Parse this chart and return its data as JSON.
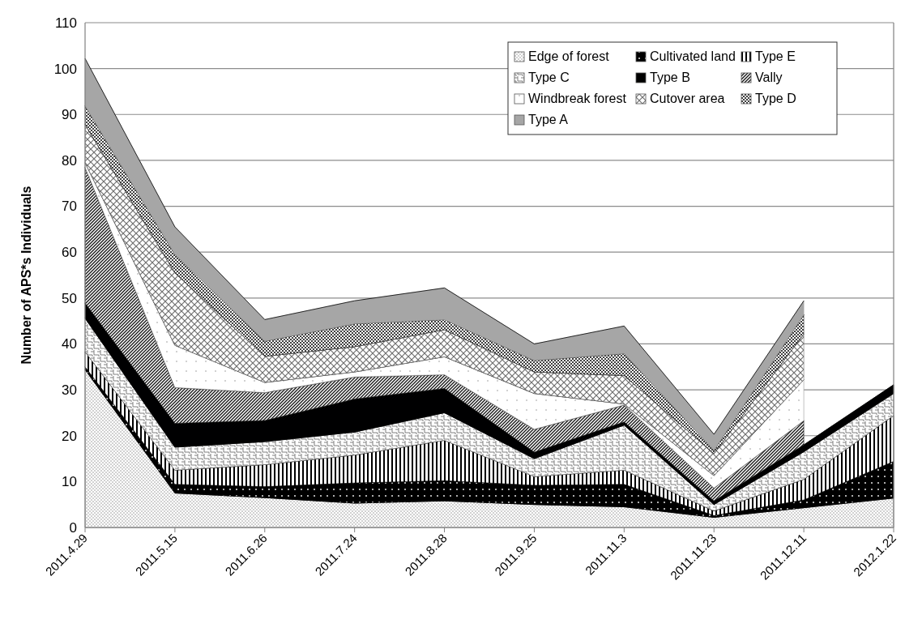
{
  "chart_data": {
    "type": "area",
    "stacked": true,
    "ylabel": "Number of APS*s Individuals",
    "categories": [
      "2011.4.29",
      "2011.5.15",
      "2011.6.26",
      "2011.7.24",
      "2011.8.28",
      "2011.9.25",
      "2011.11.3",
      "2011.11.23",
      "2011.12.11",
      "2012.1.22"
    ],
    "series": [
      {
        "name": "Edge of forest",
        "color": "#808080",
        "values": [
          34.4,
          7.5,
          6.5,
          5.3,
          5.8,
          5.0,
          4.5,
          2.2,
          4.3,
          6.4
        ]
      },
      {
        "name": "Cultivated land",
        "color": "#000000",
        "values": [
          0.6,
          1.9,
          2.4,
          4.4,
          4.4,
          4.2,
          4.9,
          0.4,
          1.7,
          8.0
        ]
      },
      {
        "name": "Type E",
        "color": "#000000",
        "values": [
          3.3,
          3.1,
          4.8,
          6.1,
          8.8,
          1.9,
          3.1,
          1.0,
          4.5,
          10.0
        ]
      },
      {
        "name": "Type C",
        "color": "#7f7f7f",
        "values": [
          7.3,
          5.0,
          5.0,
          5.0,
          6.0,
          3.9,
          9.8,
          1.4,
          6.0,
          4.8
        ]
      },
      {
        "name": "Type B",
        "color": "#000001",
        "values": [
          3.3,
          5.2,
          4.6,
          7.2,
          5.3,
          1.4,
          0.7,
          0.8,
          1.5,
          1.9
        ]
      },
      {
        "name": "Vally",
        "color": "#1a1a1a",
        "values": [
          29.6,
          7.8,
          6.1,
          4.8,
          3.0,
          5.0,
          3.7,
          2.8,
          5.3,
          null
        ]
      },
      {
        "name": "Windbreak forest",
        "color": "#9a9a9a",
        "values": [
          1.0,
          9.2,
          2.2,
          1.1,
          3.9,
          7.8,
          0.2,
          2.7,
          8.9,
          null
        ]
      },
      {
        "name": "Cutover area",
        "color": "#707070",
        "values": [
          8.3,
          15.8,
          5.7,
          5.5,
          5.9,
          4.7,
          6.2,
          4.8,
          10.0,
          null
        ]
      },
      {
        "name": "Type D",
        "color": "#404040",
        "values": [
          4.1,
          4.0,
          3.3,
          5.0,
          2.2,
          2.5,
          4.8,
          0.7,
          4.2,
          null
        ]
      },
      {
        "name": "Type A",
        "color": "#a6a6a6",
        "values": [
          10.3,
          6.0,
          4.7,
          5.0,
          6.9,
          3.6,
          6.0,
          3.5,
          3.0,
          null
        ]
      }
    ],
    "ylim": [
      0,
      110
    ],
    "yticks": [
      0,
      10,
      20,
      30,
      40,
      50,
      60,
      70,
      80,
      90,
      100,
      110
    ],
    "grid": "y",
    "legend": "top right"
  }
}
